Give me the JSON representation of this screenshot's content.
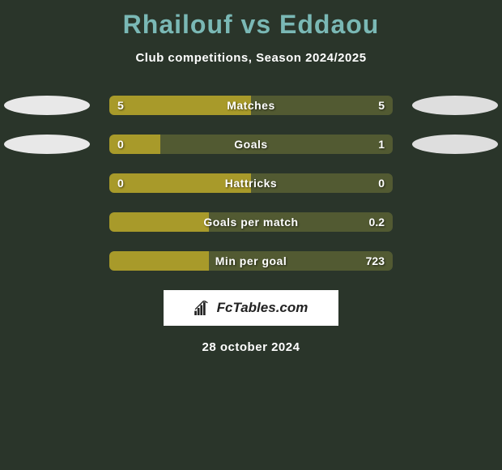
{
  "title": {
    "player1": "Rhailouf",
    "vs": "vs",
    "player2": "Eddaou",
    "color": "#7ab8b5"
  },
  "subtitle": "Club competitions, Season 2024/2025",
  "colors": {
    "background": "#2a352a",
    "bar_left": "#a89a2a",
    "bar_right": "#525a32",
    "ellipse_left": "#e8e8e8",
    "ellipse_right": "#dedede",
    "text": "#ffffff"
  },
  "stats": [
    {
      "label": "Matches",
      "left_value": "5",
      "right_value": "5",
      "left_pct": 50,
      "show_ellipses": true
    },
    {
      "label": "Goals",
      "left_value": "0",
      "right_value": "1",
      "left_pct": 18,
      "show_ellipses": true
    },
    {
      "label": "Hattricks",
      "left_value": "0",
      "right_value": "0",
      "left_pct": 50,
      "show_ellipses": false
    },
    {
      "label": "Goals per match",
      "left_value": "",
      "right_value": "0.2",
      "left_pct": 35,
      "show_ellipses": false
    },
    {
      "label": "Min per goal",
      "left_value": "",
      "right_value": "723",
      "left_pct": 35,
      "show_ellipses": false
    }
  ],
  "brand": "FcTables.com",
  "date": "28 october 2024"
}
